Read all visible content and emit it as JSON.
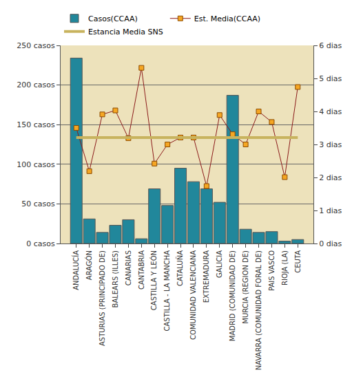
{
  "chart_data": {
    "type": "bar",
    "categories": [
      "ANDALUCÍA",
      "ARAGÓN",
      "ASTURIAS (PRINCIPADO DE)",
      "BALEARS (ILLES)",
      "CANARIAS",
      "CANTABRIA",
      "CASTILLA Y LEÓN",
      "CASTILLA - LA MANCHA",
      "CATALUÑA",
      "COMUNIDAD VALENCIANA",
      "EXTREMADURA",
      "GALICIA",
      "MADRID (COMUNIDAD DE)",
      "MURCIA (REGION DE)",
      "NAVARRA (COMUNIDAD FORAL DE)",
      "PAIS VASCO",
      "RIOJA (LA)",
      "CEUTA"
    ],
    "series": [
      {
        "name": "Casos(CCAA)",
        "type": "bar",
        "color": "#21879b",
        "values": [
          234,
          31,
          14,
          23,
          30,
          6,
          69,
          48,
          95,
          78,
          69,
          52,
          187,
          18,
          14,
          15,
          3,
          5
        ]
      },
      {
        "name": "Est. Media(CCAA)",
        "type": "line",
        "axis": "y2",
        "color": "#8b1a1a",
        "marker": "square",
        "line_style": "solid",
        "values": [
          3.5,
          2.19,
          3.91,
          4.03,
          3.19,
          5.32,
          2.42,
          3.0,
          3.21,
          3.21,
          1.74,
          3.89,
          3.31,
          3.0,
          4.0,
          3.68,
          2.01,
          4.74
        ]
      },
      {
        "name": "Estancia Media SNS",
        "type": "line",
        "axis": "y2",
        "color": "#c8b35e",
        "line_style": "solid",
        "values": [
          3.21,
          3.21,
          3.21,
          3.21,
          3.21,
          3.21,
          3.21,
          3.21,
          3.21,
          3.21,
          3.21,
          3.21,
          3.21,
          3.21,
          3.21,
          3.21,
          3.21,
          3.21
        ]
      }
    ],
    "ylim": [
      0,
      250
    ],
    "yticks": [
      {
        "value": 0,
        "label": "0 casos"
      },
      {
        "value": 50,
        "label": "50 casos"
      },
      {
        "value": 100,
        "label": "100 casos"
      },
      {
        "value": 150,
        "label": "150 casos"
      },
      {
        "value": 200,
        "label": "200 casos"
      },
      {
        "value": 250,
        "label": "250 casos"
      }
    ],
    "y2lim": [
      0,
      6
    ],
    "y2ticks": [
      {
        "value": 0,
        "label": "0 dias"
      },
      {
        "value": 1,
        "label": "1 dias"
      },
      {
        "value": 2,
        "label": "2 dias"
      },
      {
        "value": 3,
        "label": "3 dias"
      },
      {
        "value": 4,
        "label": "4 dias"
      },
      {
        "value": 5,
        "label": "5 dias"
      },
      {
        "value": 6,
        "label": "6 dias"
      }
    ],
    "grid": true,
    "legend": "top"
  }
}
